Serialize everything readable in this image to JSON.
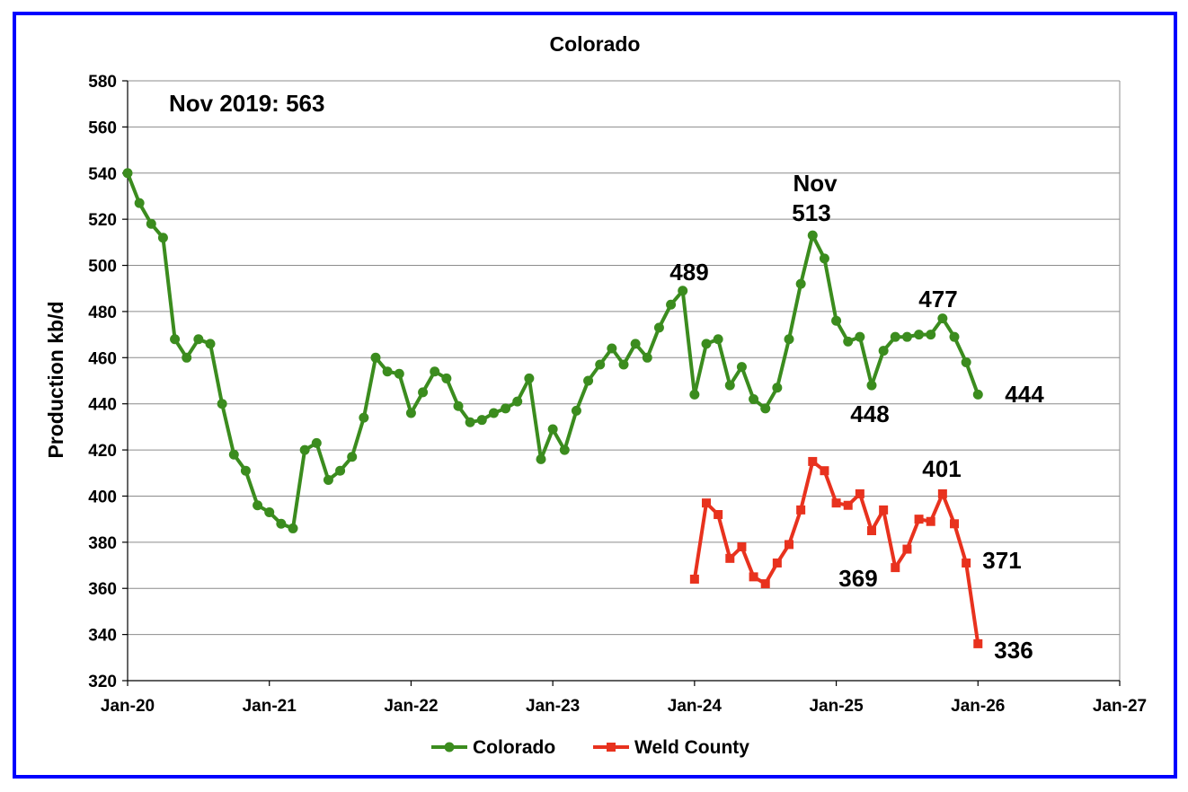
{
  "chart_data": {
    "type": "line",
    "title": "Colorado",
    "ylabel": "Production kb/d",
    "xlabel": "",
    "ylim": [
      320,
      580
    ],
    "yticks": [
      320,
      340,
      360,
      380,
      400,
      420,
      440,
      460,
      480,
      500,
      520,
      540,
      560,
      580
    ],
    "xrange": [
      "2020-01",
      "2027-01"
    ],
    "xticks": [
      {
        "date": "2020-01",
        "label": "Jan-20"
      },
      {
        "date": "2021-01",
        "label": "Jan-21"
      },
      {
        "date": "2022-01",
        "label": "Jan-22"
      },
      {
        "date": "2023-01",
        "label": "Jan-23"
      },
      {
        "date": "2024-01",
        "label": "Jan-24"
      },
      {
        "date": "2025-01",
        "label": "Jan-25"
      },
      {
        "date": "2026-01",
        "label": "Jan-26"
      },
      {
        "date": "2027-01",
        "label": "Jan-27"
      }
    ],
    "grid": true,
    "legend_position": "bottom",
    "series": [
      {
        "name": "Colorado",
        "color": "#3b8c1e",
        "marker": "circle",
        "start": "2020-01",
        "values": [
          540,
          527,
          518,
          512,
          468,
          460,
          468,
          466,
          440,
          418,
          411,
          396,
          393,
          388,
          386,
          420,
          423,
          407,
          411,
          417,
          434,
          460,
          454,
          453,
          436,
          445,
          454,
          451,
          439,
          432,
          433,
          436,
          438,
          441,
          451,
          416,
          429,
          420,
          437,
          450,
          457,
          464,
          457,
          466,
          460,
          473,
          483,
          489,
          444,
          466,
          468,
          448,
          456,
          442,
          438,
          447,
          468,
          492,
          513,
          503,
          476,
          467,
          469,
          448,
          463,
          469,
          469,
          470,
          470,
          477,
          469,
          458,
          444
        ]
      },
      {
        "name": "Weld County",
        "color": "#e8321e",
        "marker": "square",
        "start": "2024-01",
        "values": [
          364,
          397,
          392,
          373,
          378,
          365,
          362,
          371,
          379,
          394,
          415,
          411,
          397,
          396,
          401,
          385,
          394,
          369,
          377,
          390,
          389,
          401,
          388,
          371,
          336
        ]
      }
    ],
    "annotations": [
      {
        "text": "Nov 2019:  563"
      },
      {
        "text": "489",
        "date": "2023-12",
        "value": 489
      },
      {
        "text": "Nov",
        "date": "2024-11",
        "value": 513
      },
      {
        "text": "513",
        "date": "2024-11",
        "value": 513
      },
      {
        "text": "477",
        "date": "2025-10",
        "value": 477
      },
      {
        "text": "448",
        "date": "2025-04",
        "value": 448
      },
      {
        "text": "444",
        "date": "2026-01",
        "value": 444
      },
      {
        "text": "401",
        "date": "2025-10",
        "value": 401
      },
      {
        "text": "369",
        "date": "2025-06",
        "value": 369
      },
      {
        "text": "371",
        "date": "2025-12",
        "value": 371
      },
      {
        "text": "336",
        "date": "2026-01",
        "value": 336
      }
    ]
  }
}
